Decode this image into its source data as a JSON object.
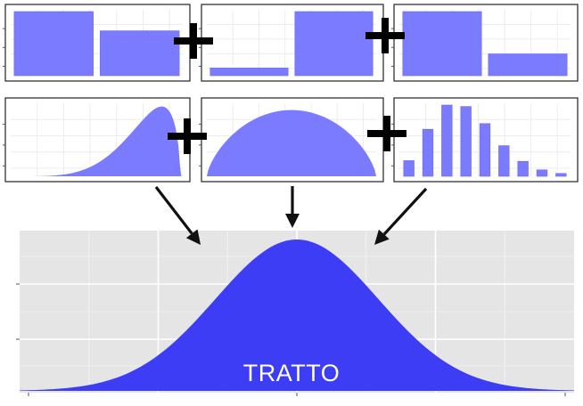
{
  "colors": {
    "bar_fill": "#7b7bff",
    "bar_stroke": "#6a6aee",
    "result_fill": "#3d3df5",
    "result_panel_bg": "#e5e5e5",
    "panel_border": "#222222",
    "grid": "#ececec",
    "arrow": "#111111"
  },
  "chart_data": [
    {
      "type": "bar",
      "values": [
        1.0,
        0.7
      ]
    },
    {
      "type": "bar",
      "values": [
        0.12,
        1.0
      ]
    },
    {
      "type": "bar",
      "values": [
        1.0,
        0.34
      ]
    },
    {
      "type": "area",
      "shape": "left-skewed density"
    },
    {
      "type": "area",
      "shape": "symmetric dome"
    },
    {
      "type": "bar",
      "values": [
        0.22,
        0.66,
        1.0,
        0.98,
        0.74,
        0.43,
        0.21,
        0.09,
        0.04
      ]
    },
    {
      "type": "area",
      "shape": "normal density",
      "mean": 0,
      "sd": 1,
      "xlim": [
        -3.4,
        3.4
      ],
      "grid": true
    }
  ],
  "operators": {
    "plus_symbol": "plus-icon"
  },
  "arrows": [
    "down-right-arrow-icon",
    "down-arrow-icon",
    "down-left-arrow-icon"
  ],
  "result": {
    "label": "TRATTO"
  }
}
